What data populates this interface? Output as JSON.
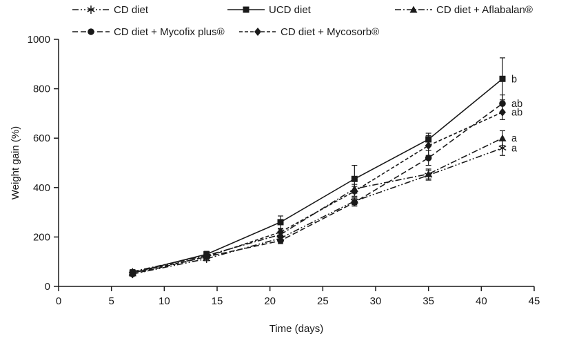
{
  "colors": {
    "line": "#1a1a1a",
    "text": "#1a1a1a",
    "background": "#ffffff"
  },
  "chart_data": {
    "type": "line",
    "title": "",
    "xlabel": "Time (days)",
    "ylabel": "Weight gain (%)",
    "x": [
      7,
      14,
      21,
      28,
      35,
      42
    ],
    "xlim": [
      0,
      45
    ],
    "ylim": [
      0,
      1000
    ],
    "xticks": [
      0,
      5,
      10,
      15,
      20,
      25,
      30,
      35,
      40,
      45
    ],
    "yticks": [
      0,
      200,
      400,
      600,
      800,
      1000
    ],
    "grid": false,
    "legend_position": "top",
    "series": [
      {
        "name": "CD diet",
        "marker": "asterisk",
        "dash": "dashdotdot",
        "values": [
          50,
          112,
          195,
          345,
          450,
          560
        ],
        "errors": [
          5,
          8,
          12,
          15,
          20,
          30
        ],
        "end_label": "a"
      },
      {
        "name": "UCD diet",
        "marker": "square",
        "dash": "solid",
        "values": [
          55,
          130,
          260,
          435,
          595,
          840
        ],
        "errors": [
          8,
          12,
          25,
          55,
          25,
          85
        ],
        "end_label": "b"
      },
      {
        "name": "CD diet + Aflabalan®",
        "marker": "triangle",
        "dash": "dashdot",
        "values": [
          60,
          125,
          210,
          395,
          455,
          600
        ],
        "errors": [
          8,
          10,
          12,
          18,
          20,
          30
        ],
        "end_label": "a"
      },
      {
        "name": "CD diet + Mycofix plus®",
        "marker": "circle",
        "dash": "dashed",
        "values": [
          50,
          120,
          185,
          340,
          520,
          740
        ],
        "errors": [
          6,
          8,
          12,
          15,
          30,
          35
        ],
        "end_label": "ab"
      },
      {
        "name": "CD diet + Mycosorb®",
        "marker": "diamond",
        "dash": "shortdash",
        "values": [
          55,
          120,
          220,
          385,
          570,
          705
        ],
        "errors": [
          6,
          8,
          12,
          20,
          40,
          30
        ],
        "end_label": "ab"
      }
    ]
  }
}
